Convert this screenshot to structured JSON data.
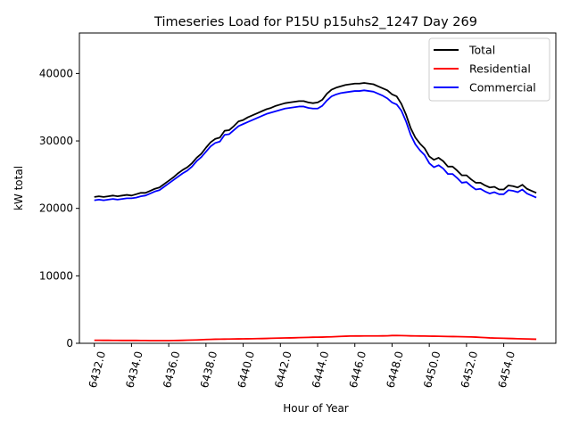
{
  "chart_data": {
    "type": "line",
    "title": "Timeseries Load for P15U p15uhs2_1247  Day 269",
    "xlabel": "Hour of Year",
    "ylabel": "kW total",
    "xlim": [
      6431.2,
      6456.8
    ],
    "ylim": [
      0,
      46000
    ],
    "xticks": [
      6432,
      6434,
      6436,
      6438,
      6440,
      6442,
      6444,
      6446,
      6448,
      6450,
      6452,
      6454
    ],
    "xtick_labels": [
      "6432.0",
      "6434.0",
      "6436.0",
      "6438.0",
      "6440.0",
      "6442.0",
      "6444.0",
      "6446.0",
      "6448.0",
      "6450.0",
      "6452.0",
      "6454.0"
    ],
    "yticks": [
      0,
      10000,
      20000,
      30000,
      40000
    ],
    "ytick_labels": [
      "0",
      "10000",
      "20000",
      "30000",
      "40000"
    ],
    "legend_position": "top-right",
    "x": [
      6432.0,
      6432.25,
      6432.5,
      6432.75,
      6433.0,
      6433.25,
      6433.5,
      6433.75,
      6434.0,
      6434.25,
      6434.5,
      6434.75,
      6435.0,
      6435.25,
      6435.5,
      6435.75,
      6436.0,
      6436.25,
      6436.5,
      6436.75,
      6437.0,
      6437.25,
      6437.5,
      6437.75,
      6438.0,
      6438.25,
      6438.5,
      6438.75,
      6439.0,
      6439.25,
      6439.5,
      6439.75,
      6440.0,
      6440.25,
      6440.5,
      6440.75,
      6441.0,
      6441.25,
      6441.5,
      6441.75,
      6442.0,
      6442.25,
      6442.5,
      6442.75,
      6443.0,
      6443.25,
      6443.5,
      6443.75,
      6444.0,
      6444.25,
      6444.5,
      6444.75,
      6445.0,
      6445.25,
      6445.5,
      6445.75,
      6446.0,
      6446.25,
      6446.5,
      6446.75,
      6447.0,
      6447.25,
      6447.5,
      6447.75,
      6448.0,
      6448.25,
      6448.5,
      6448.75,
      6449.0,
      6449.25,
      6449.5,
      6449.75,
      6450.0,
      6450.25,
      6450.5,
      6450.75,
      6451.0,
      6451.25,
      6451.5,
      6451.75,
      6452.0,
      6452.25,
      6452.5,
      6452.75,
      6453.0,
      6453.25,
      6453.5,
      6453.75,
      6454.0,
      6454.25,
      6454.5,
      6454.75,
      6455.0,
      6455.25,
      6455.5,
      6455.75
    ],
    "series": [
      {
        "name": "Total",
        "color": "#000000",
        "values": [
          21700,
          21800,
          21700,
          21800,
          21900,
          21800,
          21900,
          22000,
          21900,
          22100,
          22300,
          22300,
          22600,
          22900,
          23100,
          23600,
          24100,
          24600,
          25200,
          25700,
          26100,
          26700,
          27500,
          28100,
          29000,
          29800,
          30300,
          30500,
          31500,
          31600,
          32200,
          32900,
          33100,
          33500,
          33800,
          34100,
          34400,
          34700,
          34900,
          35200,
          35400,
          35600,
          35700,
          35800,
          35900,
          35900,
          35700,
          35600,
          35700,
          36100,
          37000,
          37600,
          37900,
          38100,
          38300,
          38400,
          38500,
          38500,
          38600,
          38500,
          38400,
          38100,
          37800,
          37500,
          36900,
          36600,
          35500,
          33900,
          31900,
          30500,
          29600,
          28900,
          27700,
          27200,
          27500,
          27000,
          26200,
          26200,
          25600,
          24900,
          24900,
          24300,
          23800,
          23800,
          23400,
          23100,
          23200,
          22800,
          22800,
          23400,
          23300,
          23100,
          23500,
          22900,
          22600,
          22300
        ]
      },
      {
        "name": "Residential",
        "color": "#ff0000",
        "values": [
          450,
          450,
          440,
          440,
          430,
          430,
          420,
          420,
          420,
          420,
          410,
          410,
          400,
          400,
          400,
          400,
          400,
          410,
          420,
          440,
          460,
          480,
          500,
          530,
          560,
          580,
          600,
          610,
          620,
          630,
          640,
          650,
          660,
          670,
          680,
          690,
          700,
          720,
          740,
          760,
          780,
          790,
          800,
          820,
          840,
          860,
          880,
          900,
          910,
          920,
          940,
          960,
          990,
          1020,
          1050,
          1070,
          1080,
          1080,
          1090,
          1090,
          1090,
          1090,
          1100,
          1110,
          1150,
          1160,
          1140,
          1120,
          1100,
          1090,
          1080,
          1070,
          1060,
          1050,
          1040,
          1020,
          1010,
          1000,
          990,
          980,
          960,
          940,
          920,
          880,
          840,
          800,
          780,
          760,
          740,
          720,
          700,
          680,
          660,
          640,
          620,
          600
        ]
      },
      {
        "name": "Commercial",
        "color": "#0000ff",
        "values": [
          21200,
          21300,
          21200,
          21300,
          21400,
          21300,
          21400,
          21500,
          21500,
          21600,
          21800,
          21900,
          22200,
          22500,
          22700,
          23200,
          23700,
          24200,
          24700,
          25200,
          25600,
          26200,
          27000,
          27600,
          28400,
          29200,
          29700,
          29900,
          30900,
          31000,
          31600,
          32200,
          32500,
          32800,
          33100,
          33400,
          33700,
          34000,
          34200,
          34400,
          34600,
          34800,
          34900,
          35000,
          35100,
          35100,
          34900,
          34800,
          34800,
          35200,
          36000,
          36600,
          36900,
          37100,
          37200,
          37300,
          37400,
          37400,
          37500,
          37400,
          37300,
          37000,
          36700,
          36300,
          35700,
          35400,
          34500,
          32900,
          30900,
          29500,
          28600,
          27900,
          26700,
          26100,
          26400,
          25900,
          25100,
          25100,
          24500,
          23800,
          23900,
          23300,
          22800,
          22900,
          22500,
          22200,
          22400,
          22100,
          22100,
          22700,
          22600,
          22400,
          22800,
          22200,
          21900,
          21600
        ]
      }
    ]
  }
}
